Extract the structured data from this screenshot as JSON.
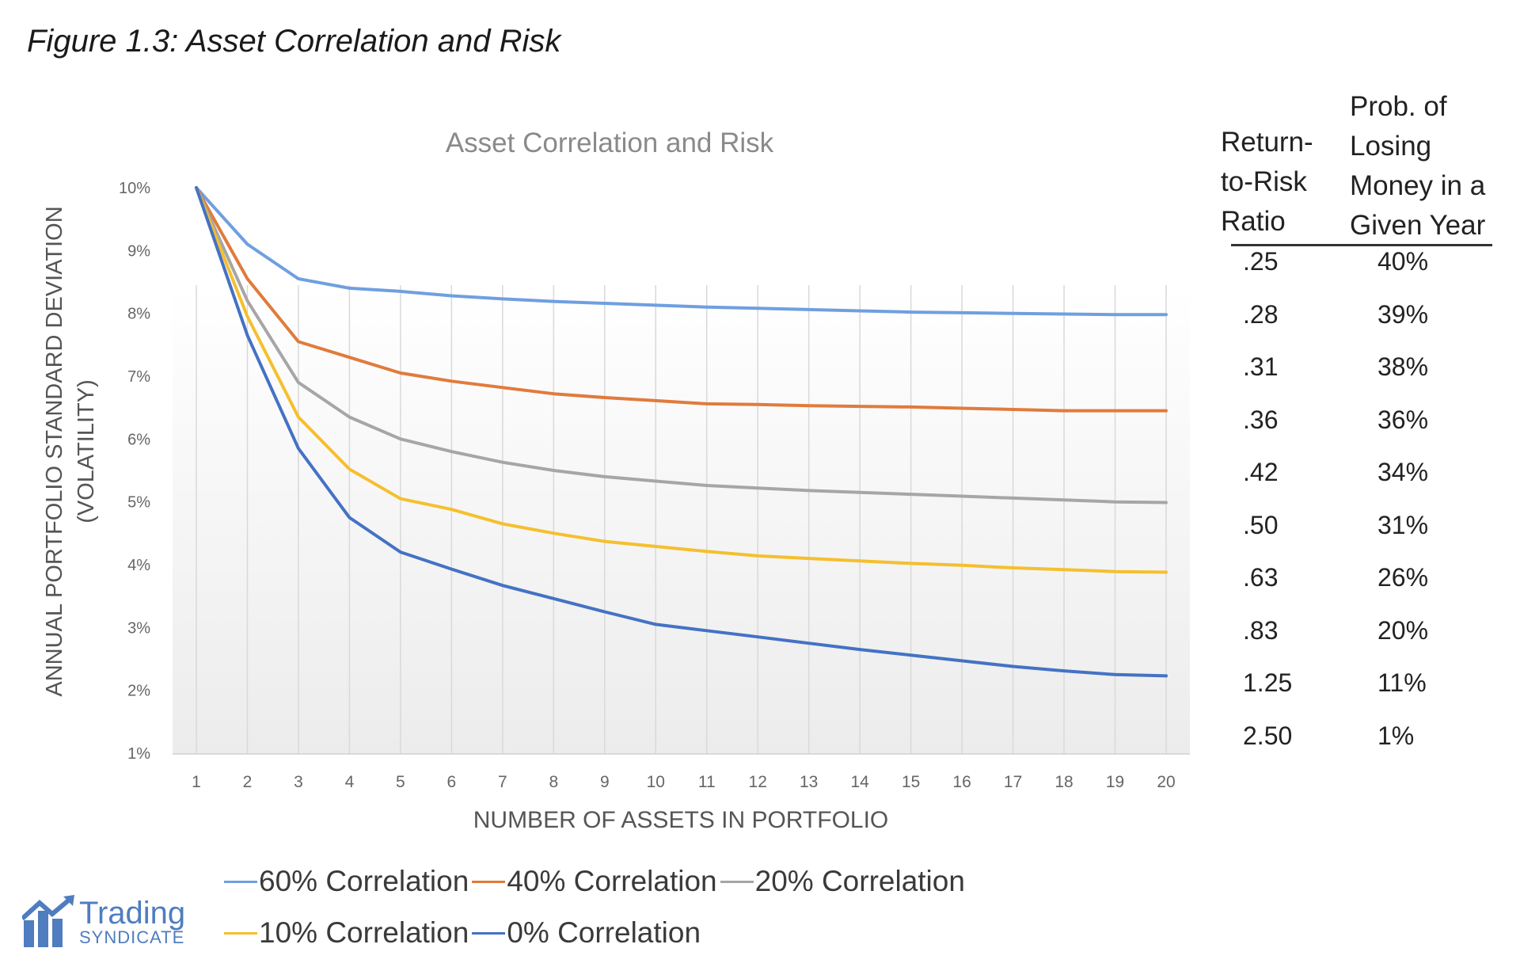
{
  "figure_title": "Figure 1.3: Asset Correlation and Risk",
  "chart_data": {
    "type": "line",
    "title": "Asset Correlation and Risk",
    "xlabel": "NUMBER OF ASSETS IN PORTFOLIO",
    "ylabel_line1": "ANNUAL PORTFOLIO STANDARD DEVIATION",
    "ylabel_line2": "(VOLATILITY)",
    "x": [
      1,
      2,
      3,
      4,
      5,
      6,
      7,
      8,
      9,
      10,
      11,
      12,
      13,
      14,
      15,
      16,
      17,
      18,
      19,
      20
    ],
    "x_tick_labels": [
      "1",
      "2",
      "3",
      "4",
      "5",
      "6",
      "7",
      "8",
      "9",
      "10",
      "11",
      "12",
      "13",
      "14",
      "15",
      "16",
      "17",
      "18",
      "19",
      "20"
    ],
    "y_tick_labels": [
      "1%",
      "2%",
      "3%",
      "4%",
      "5%",
      "6%",
      "7%",
      "8%",
      "9%",
      "10%"
    ],
    "ylim": [
      1,
      10
    ],
    "grid": "vertical",
    "legend_position": "bottom",
    "series": [
      {
        "name": "60% Correlation",
        "color": "#6f9fe0",
        "values": [
          10.0,
          9.1,
          8.55,
          8.4,
          8.35,
          8.28,
          8.23,
          8.19,
          8.16,
          8.13,
          8.1,
          8.08,
          8.06,
          8.04,
          8.02,
          8.01,
          8.0,
          7.99,
          7.98,
          7.98
        ]
      },
      {
        "name": "40% Correlation",
        "color": "#e07b3c",
        "values": [
          10.0,
          8.55,
          7.55,
          7.3,
          7.05,
          6.92,
          6.82,
          6.72,
          6.66,
          6.61,
          6.56,
          6.55,
          6.53,
          6.52,
          6.51,
          6.49,
          6.47,
          6.45,
          6.45,
          6.45
        ]
      },
      {
        "name": "20% Correlation",
        "color": "#a6a6a6",
        "values": [
          10.0,
          8.2,
          6.9,
          6.35,
          6.0,
          5.8,
          5.63,
          5.5,
          5.4,
          5.33,
          5.26,
          5.22,
          5.18,
          5.15,
          5.12,
          5.09,
          5.06,
          5.03,
          5.0,
          4.99
        ]
      },
      {
        "name": "10% Correlation",
        "color": "#f5bf2e",
        "values": [
          10.0,
          7.95,
          6.35,
          5.52,
          5.05,
          4.88,
          4.65,
          4.5,
          4.37,
          4.29,
          4.21,
          4.14,
          4.1,
          4.06,
          4.02,
          3.99,
          3.95,
          3.92,
          3.89,
          3.88
        ]
      },
      {
        "name": "0% Correlation",
        "color": "#4472c4",
        "values": [
          10.0,
          7.65,
          5.85,
          4.75,
          4.2,
          3.93,
          3.67,
          3.46,
          3.25,
          3.05,
          2.95,
          2.85,
          2.75,
          2.65,
          2.56,
          2.47,
          2.38,
          2.31,
          2.25,
          2.23
        ]
      }
    ]
  },
  "side_table": {
    "col1_header": "Return-\nto-Risk\nRatio",
    "col2_header": "Prob. of\nLosing\nMoney in a\nGiven Year",
    "rows": [
      {
        "ratio": ".25",
        "prob": "40%"
      },
      {
        "ratio": ".28",
        "prob": "39%"
      },
      {
        "ratio": ".31",
        "prob": "38%"
      },
      {
        "ratio": ".36",
        "prob": "36%"
      },
      {
        "ratio": ".42",
        "prob": "34%"
      },
      {
        "ratio": ".50",
        "prob": "31%"
      },
      {
        "ratio": ".63",
        "prob": "26%"
      },
      {
        "ratio": ".83",
        "prob": "20%"
      },
      {
        "ratio": "1.25",
        "prob": "11%"
      },
      {
        "ratio": "2.50",
        "prob": "1%"
      }
    ]
  },
  "logo": {
    "word1": "Trading",
    "word2": "SYNDICATE",
    "color": "#4f7dbf"
  }
}
